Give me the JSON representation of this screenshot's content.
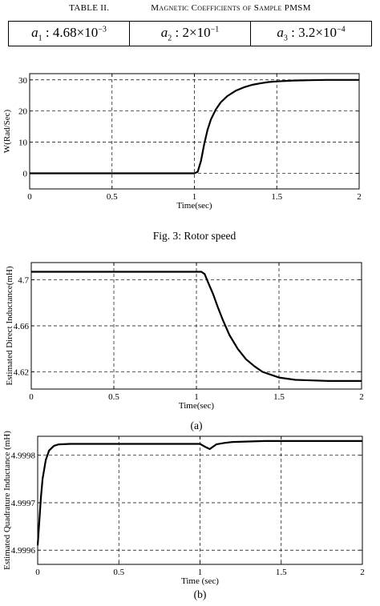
{
  "table": {
    "label": "TABLE II.",
    "title": "Magnetic Coefficients of Sample PMSM",
    "cells": [
      {
        "name": "a",
        "sub": "1",
        "sep": " : ",
        "value": "4.68×10",
        "exp": "−3"
      },
      {
        "name": "a",
        "sub": "2",
        "sep": " : ",
        "value": "2×10",
        "exp": "−1"
      },
      {
        "name": "a",
        "sub": "3",
        "sep": " : ",
        "value": "3.2×10",
        "exp": "−4"
      }
    ]
  },
  "chart_data": [
    {
      "id": "rotor-speed",
      "type": "line",
      "caption": "Fig. 3: Rotor speed",
      "xlabel": "Time(sec)",
      "ylabel": "W(Rad/Sec)",
      "xlim": [
        0,
        2
      ],
      "ylim": [
        -5,
        32
      ],
      "xticks": [
        0,
        0.5,
        1,
        1.5,
        2
      ],
      "xtick_labels": [
        "0",
        "0.5",
        "1",
        "1.5",
        "2"
      ],
      "yticks": [
        0,
        10,
        20,
        30
      ],
      "ytick_labels": [
        "0",
        "10",
        "20",
        "30"
      ],
      "grid": true,
      "grid_style": "dashed",
      "series": [
        {
          "x": [
            0,
            1.0,
            1.02,
            1.04,
            1.06,
            1.08,
            1.1,
            1.13,
            1.16,
            1.2,
            1.25,
            1.3,
            1.35,
            1.4,
            1.45,
            1.5,
            1.6,
            1.7,
            1.8,
            1.9,
            2.0
          ],
          "y": [
            0,
            0,
            0.5,
            4,
            9.5,
            14,
            17.3,
            20.5,
            22.8,
            24.8,
            26.5,
            27.6,
            28.4,
            28.9,
            29.3,
            29.5,
            29.8,
            29.9,
            30,
            30,
            30
          ]
        }
      ]
    },
    {
      "id": "direct-inductance",
      "type": "line",
      "caption": "(a)",
      "xlabel": "Time(sec)",
      "ylabel": "Estimated Direct Inductance(mH)",
      "xlim": [
        0,
        2
      ],
      "ylim": [
        4.605,
        4.715
      ],
      "xticks": [
        0,
        0.5,
        1,
        1.5,
        2
      ],
      "xtick_labels": [
        "0",
        "0.5",
        "1",
        "1.5",
        "2"
      ],
      "yticks": [
        4.62,
        4.66,
        4.7
      ],
      "ytick_labels": [
        "4.62",
        "4.66",
        "4.7"
      ],
      "grid": true,
      "grid_style": "dashed",
      "series": [
        {
          "x": [
            0,
            1.03,
            1.05,
            1.07,
            1.1,
            1.13,
            1.16,
            1.2,
            1.25,
            1.3,
            1.35,
            1.4,
            1.5,
            1.6,
            1.7,
            1.8,
            1.9,
            2.0
          ],
          "y": [
            4.707,
            4.707,
            4.705,
            4.698,
            4.688,
            4.676,
            4.665,
            4.652,
            4.64,
            4.631,
            4.625,
            4.62,
            4.615,
            4.613,
            4.6125,
            4.612,
            4.612,
            4.612
          ]
        }
      ]
    },
    {
      "id": "quadrature-inductance",
      "type": "line",
      "caption": "(b)",
      "xlabel": "Time (sec)",
      "ylabel": "Estimated Quadrature Inductance (mH)",
      "xlim": [
        0,
        2
      ],
      "ylim": [
        4.99957,
        4.99984
      ],
      "xticks": [
        0,
        0.5,
        1,
        1.5,
        2
      ],
      "xtick_labels": [
        "0",
        "0.5",
        "1",
        "1.5",
        "2"
      ],
      "yticks": [
        4.9996,
        4.9997,
        4.9998
      ],
      "ytick_labels": [
        "4.9996",
        "4.9997",
        "4.9998"
      ],
      "grid": true,
      "grid_style": "dashed",
      "series": [
        {
          "x": [
            0,
            0.01,
            0.02,
            0.03,
            0.05,
            0.07,
            0.1,
            0.13,
            0.2,
            0.5,
            1.0,
            1.03,
            1.06,
            1.08,
            1.1,
            1.15,
            1.2,
            1.4,
            1.6,
            1.8,
            2.0
          ],
          "y": [
            4.99961,
            4.99966,
            4.99971,
            4.99975,
            4.99979,
            4.99981,
            4.99982,
            4.999823,
            4.999824,
            4.999824,
            4.999824,
            4.999818,
            4.999813,
            4.999818,
            4.999823,
            4.999826,
            4.999828,
            4.99983,
            4.99983,
            4.99983,
            4.99983
          ]
        }
      ]
    }
  ]
}
